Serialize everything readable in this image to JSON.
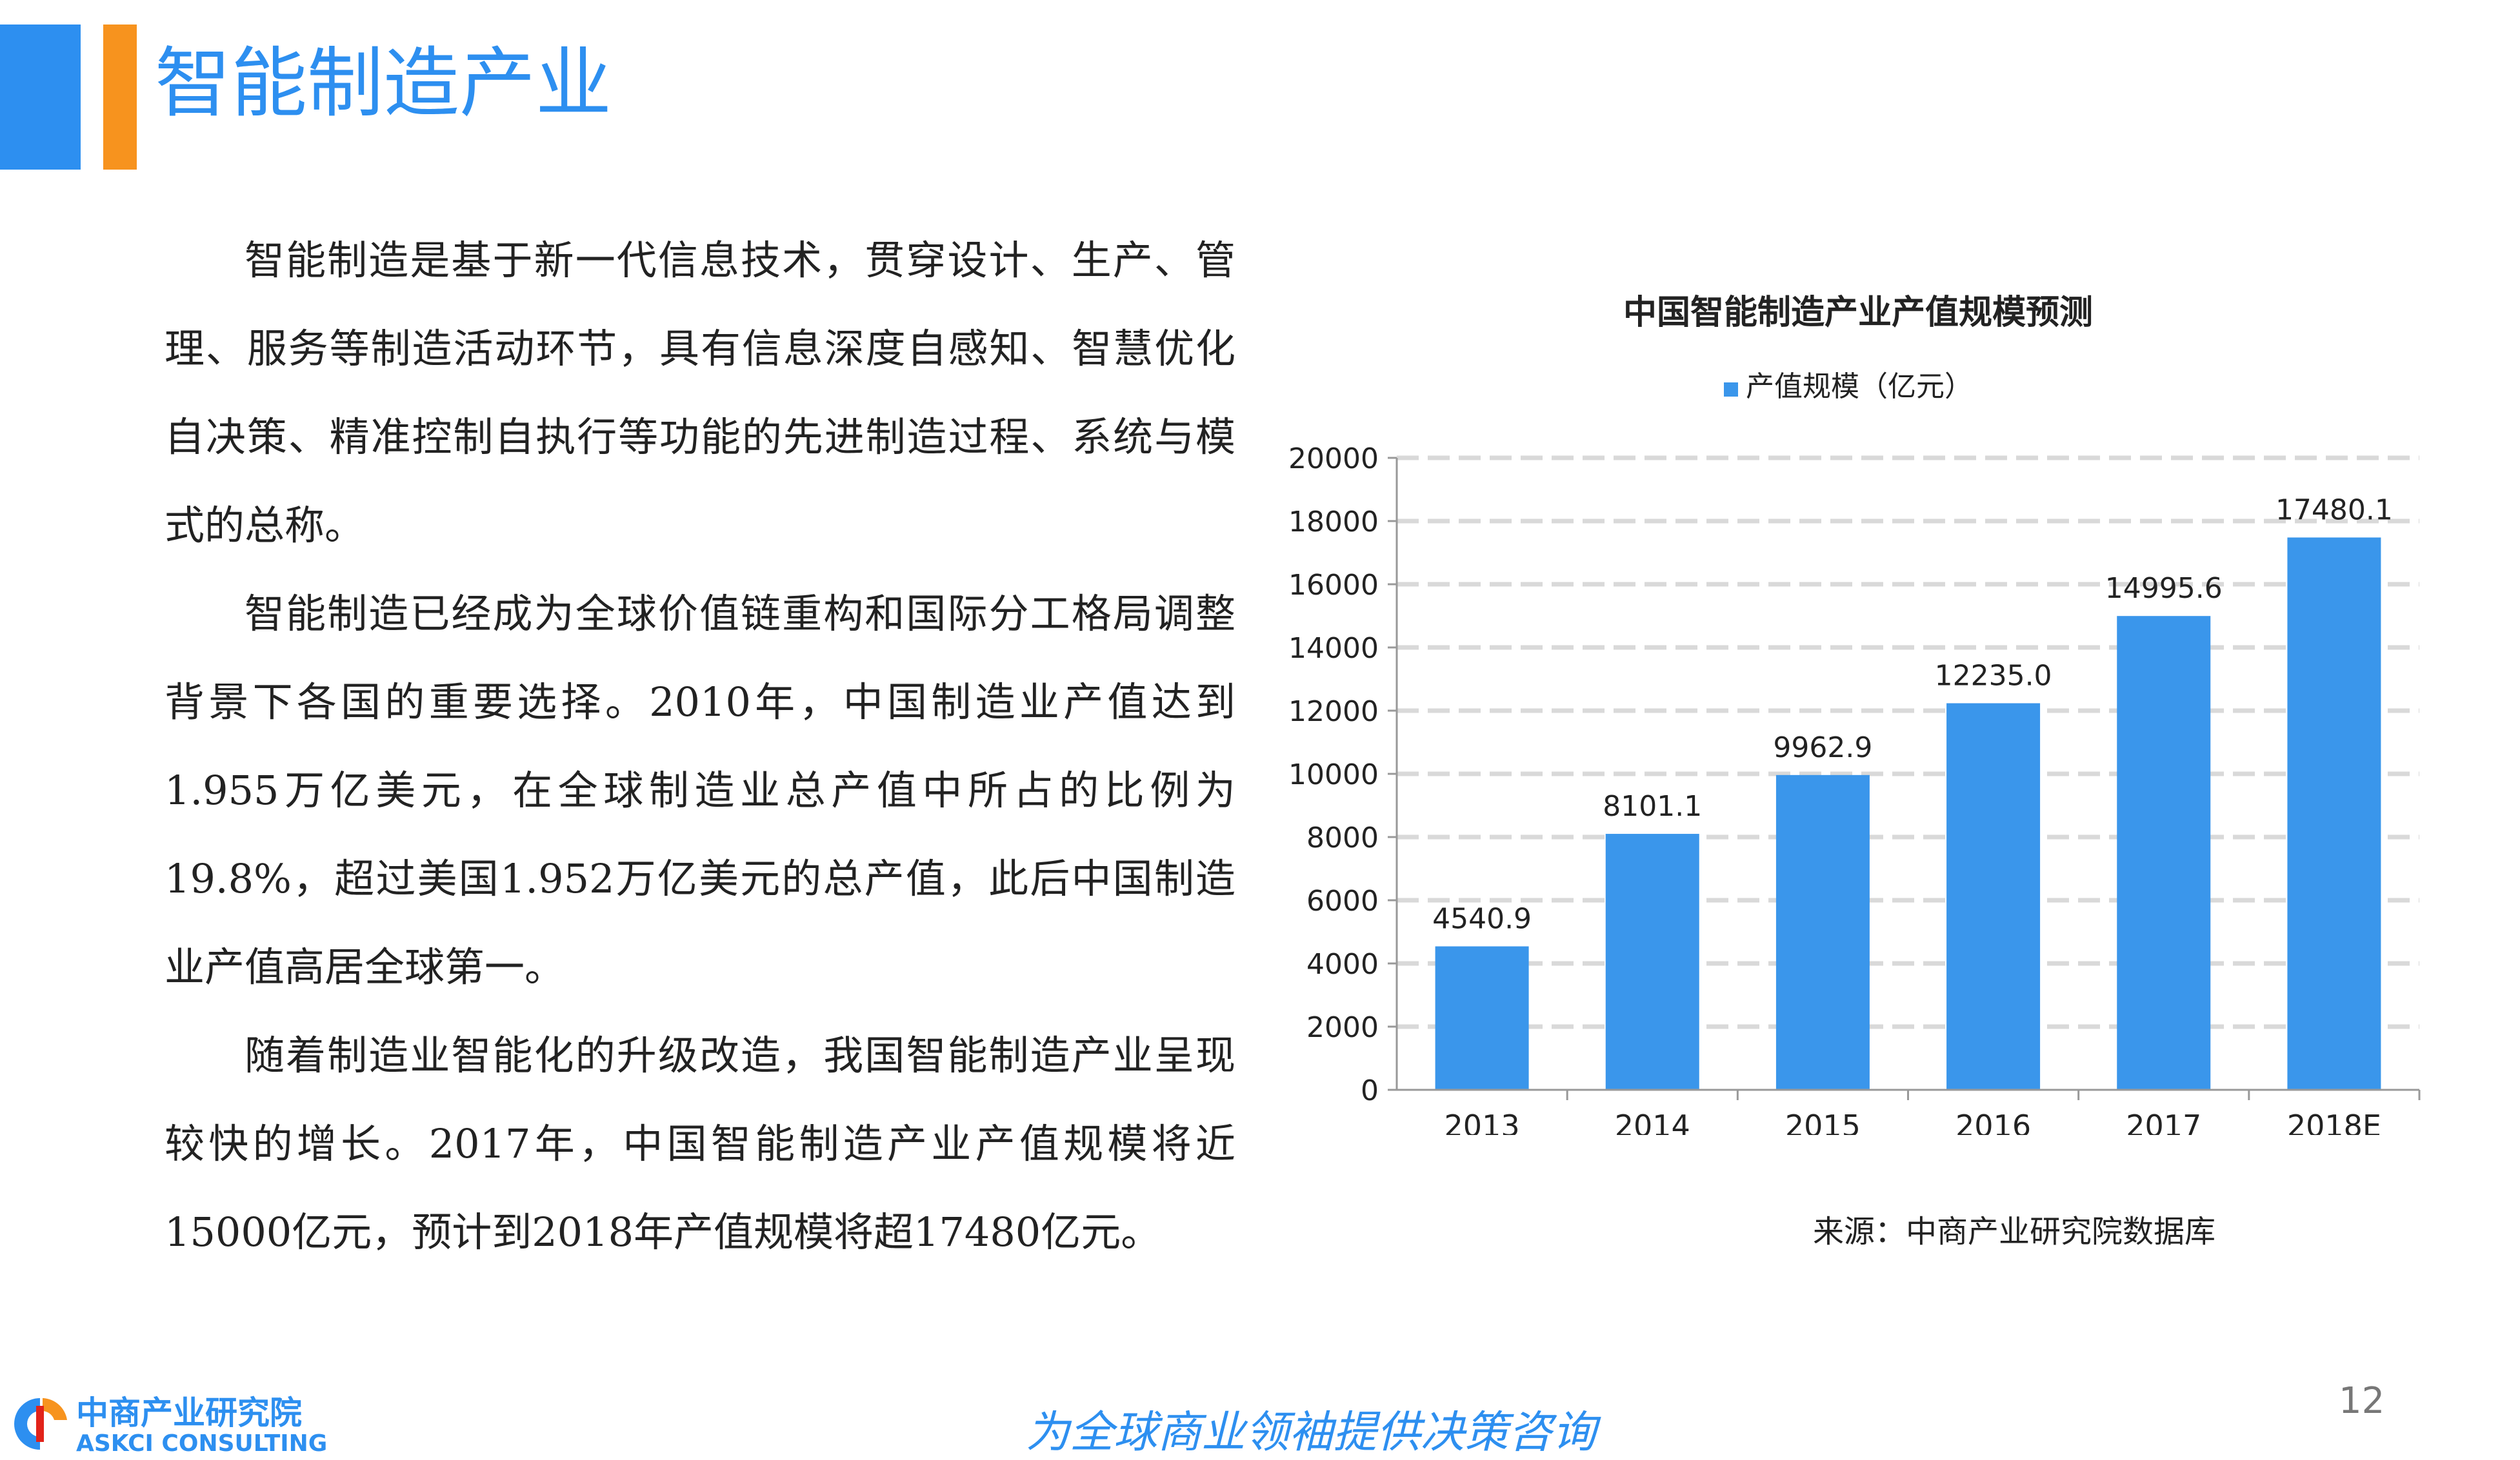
{
  "header": {
    "title": "智能制造产业"
  },
  "body": {
    "paragraphs": [
      "智能制造是基于新一代信息技术，贯穿设计、生产、管理、服务等制造活动环节，具有信息深度自感知、智慧优化自决策、精准控制自执行等功能的先进制造过程、系统与模式的总称。",
      "智能制造已经成为全球价值链重构和国际分工格局调整背景下各国的重要选择。2010年，中国制造业产值达到1.955万亿美元，在全球制造业总产值中所占的比例为19.8%，超过美国1.952万亿美元的总产值，此后中国制造业产值高居全球第一。",
      "随着制造业智能化的升级改造，我国智能制造产业呈现较快的增长。2017年，中国智能制造产业产值规模将近15000亿元，预计到2018年产值规模将超17480亿元。"
    ]
  },
  "chart_data": {
    "type": "bar",
    "title": "中国智能制造产业产值规模预测",
    "categories": [
      "2013",
      "2014",
      "2015",
      "2016",
      "2017",
      "2018E"
    ],
    "series": [
      {
        "name": "产值规模（亿元）",
        "values": [
          4540.9,
          8101.1,
          9962.9,
          12235.0,
          14995.6,
          17480.1
        ],
        "labels": [
          "4540.9",
          "8101.1",
          "9962.9",
          "12235.0",
          "14995.6",
          "17480.1"
        ]
      }
    ],
    "ylim": [
      0,
      20000
    ],
    "yticks": [
      "0",
      "2000",
      "4000",
      "6000",
      "8000",
      "10000",
      "12000",
      "14000",
      "16000",
      "18000",
      "20000"
    ],
    "grid": true,
    "legend_position": "top",
    "bar_color": "#3a96eb"
  },
  "source": "来源：中商产业研究院数据库",
  "footer": {
    "logo_cn": "中商产业研究院",
    "logo_en": "ASKCI CONSULTING",
    "slogan": "为全球商业领袖提供决策咨询",
    "page_number": "12"
  }
}
